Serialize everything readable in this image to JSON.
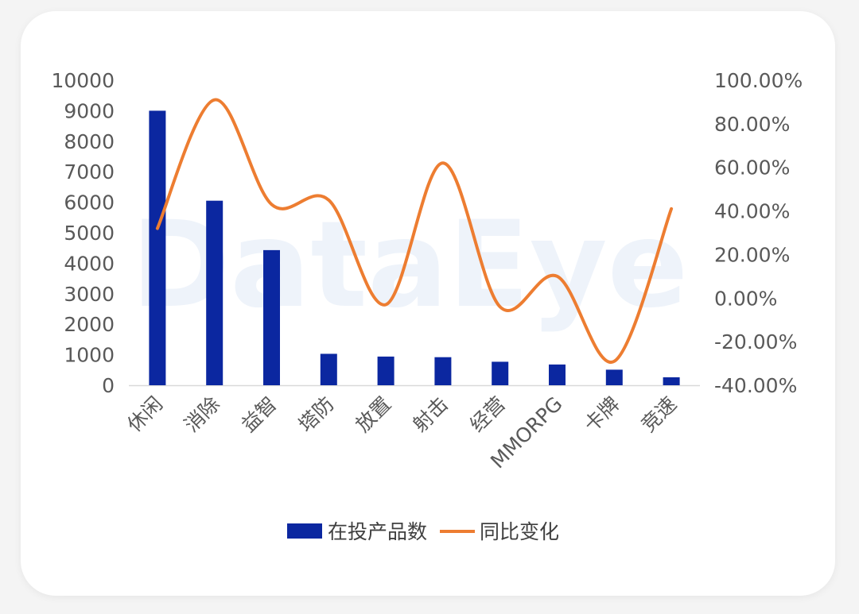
{
  "watermark": "DataEye",
  "chart_data": {
    "type": "bar",
    "categories": [
      "休闲",
      "消除",
      "益智",
      "塔防",
      "放置",
      "射击",
      "经营",
      "MMORPG",
      "卡牌",
      "竞速"
    ],
    "series": [
      {
        "name": "在投产品数",
        "type": "bar",
        "axis": "left",
        "color": "#0b27a0",
        "values": [
          9000,
          6050,
          4430,
          1030,
          940,
          920,
          770,
          680,
          510,
          260
        ]
      },
      {
        "name": "同比变化",
        "type": "line",
        "axis": "right",
        "color": "#ed7d31",
        "values": [
          0.32,
          0.91,
          0.43,
          0.45,
          -0.03,
          0.62,
          -0.04,
          0.1,
          -0.29,
          0.41
        ]
      }
    ],
    "left_axis": {
      "ylim": [
        0,
        10000
      ],
      "ticks": [
        "0",
        "1000",
        "2000",
        "3000",
        "4000",
        "5000",
        "6000",
        "7000",
        "8000",
        "9000",
        "10000"
      ]
    },
    "right_axis": {
      "ylim": [
        -0.4,
        1.0
      ],
      "ticks": [
        "-40.00%",
        "-20.00%",
        "0.00%",
        "20.00%",
        "40.00%",
        "60.00%",
        "80.00%",
        "100.00%"
      ]
    },
    "legend": [
      "在投产品数",
      "同比变化"
    ],
    "legend_position": "bottom",
    "grid": false
  }
}
